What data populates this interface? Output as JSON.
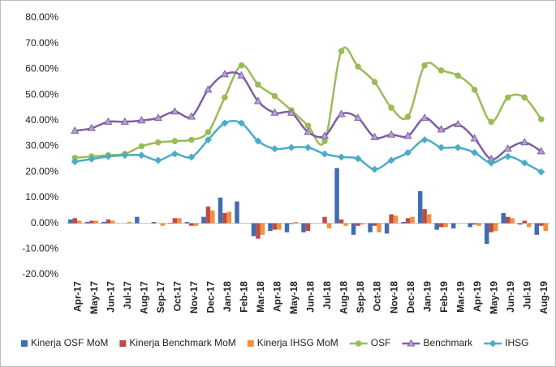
{
  "chart_data": {
    "type": "combo",
    "categories": [
      "Apr-17",
      "May-17",
      "Jun-17",
      "Jul-17",
      "Aug-17",
      "Sep-17",
      "Oct-17",
      "Nov-17",
      "Dec-17",
      "Jan-18",
      "Feb-18",
      "Mar-18",
      "Apr-18",
      "May-18",
      "Jun-18",
      "Jul-18",
      "Aug-18",
      "Sep-18",
      "Oct-18",
      "Nov-18",
      "Dec-18",
      "Jan-19",
      "Feb-19",
      "Mar-19",
      "Apr-19",
      "May-19",
      "Jun-19",
      "Jul-19",
      "Aug-19"
    ],
    "ylim": [
      -20,
      80
    ],
    "yticks": [
      {
        "value": 80,
        "label": "80.00%"
      },
      {
        "value": 70,
        "label": "70.00%"
      },
      {
        "value": 60,
        "label": "60.00%"
      },
      {
        "value": 50,
        "label": "50.00%"
      },
      {
        "value": 40,
        "label": "40.00%"
      },
      {
        "value": 30,
        "label": "30.00%"
      },
      {
        "value": 20,
        "label": "20.00%"
      },
      {
        "value": 10,
        "label": "10.00%"
      },
      {
        "value": 0,
        "label": "0.00%"
      },
      {
        "value": -10,
        "label": "-10.00%"
      },
      {
        "value": -20,
        "label": "-20.00%"
      }
    ],
    "grid": false,
    "legend": "bottom",
    "series": [
      {
        "name": "Kinerja OSF MoM",
        "type": "bar",
        "color": "#3f6eb0",
        "values": [
          1.5,
          0.5,
          0.5,
          0,
          2.5,
          0.5,
          0.2,
          0.5,
          2.5,
          10,
          8.5,
          -5,
          -3,
          -3.5,
          -3.5,
          0,
          21.5,
          -4.5,
          -3.5,
          -4,
          0.5,
          12.5,
          -2.5,
          -2,
          -1.5,
          -8,
          4,
          -0.5,
          -4.5
        ]
      },
      {
        "name": "Kinerja Benchmark MoM",
        "type": "bar",
        "color": "#be4b48",
        "values": [
          2,
          1,
          1.5,
          0,
          0,
          0,
          2,
          -1,
          6.5,
          4,
          0,
          -6,
          -2.5,
          -0.3,
          -3,
          2.5,
          1.5,
          -1,
          -1,
          3.5,
          2,
          5.5,
          -1.5,
          0,
          -0.5,
          -3.5,
          2.5,
          1,
          -1
        ]
      },
      {
        "name": "Kinerja IHSG MoM",
        "type": "bar",
        "color": "#f0913f",
        "values": [
          1,
          1,
          1,
          0.5,
          0,
          -1,
          2,
          -1,
          5,
          4.5,
          0,
          -4.5,
          -2.5,
          0.5,
          0,
          -2,
          -1,
          -0.5,
          -3.5,
          3,
          2.5,
          3.5,
          -1.5,
          0,
          -1,
          -3,
          2,
          -1.5,
          -3
        ]
      },
      {
        "name": "OSF",
        "type": "line",
        "color": "#9bbb59",
        "marker": "circle",
        "values": [
          25.5,
          26,
          26.5,
          27,
          30,
          31.5,
          32,
          32.5,
          35.5,
          49,
          61.5,
          54,
          49.5,
          44,
          38,
          32,
          67,
          61,
          55,
          45,
          41.5,
          61.5,
          59.5,
          57.5,
          52,
          39.5,
          49,
          49,
          40.5
        ]
      },
      {
        "name": "Benchmark",
        "type": "line",
        "color": "#7d5fa0",
        "marker": "triangle",
        "values": [
          36,
          37,
          39.5,
          39.5,
          40,
          41,
          43.5,
          41.5,
          52,
          58,
          57.5,
          47.5,
          43,
          43,
          35.5,
          34,
          42.5,
          41,
          33.5,
          34.5,
          34,
          41,
          36.5,
          38.5,
          33,
          25,
          29,
          31.5,
          28
        ]
      },
      {
        "name": "IHSG",
        "type": "line",
        "color": "#4bacc6",
        "marker": "diamond",
        "values": [
          24,
          25,
          26,
          26.5,
          26.5,
          24.5,
          27,
          25.8,
          32.5,
          39,
          39,
          32,
          29,
          29.5,
          29.5,
          27,
          25.8,
          25.2,
          21,
          24.5,
          27.5,
          32.5,
          29.5,
          29.5,
          27.5,
          23.5,
          26,
          23.5,
          20
        ]
      }
    ]
  }
}
